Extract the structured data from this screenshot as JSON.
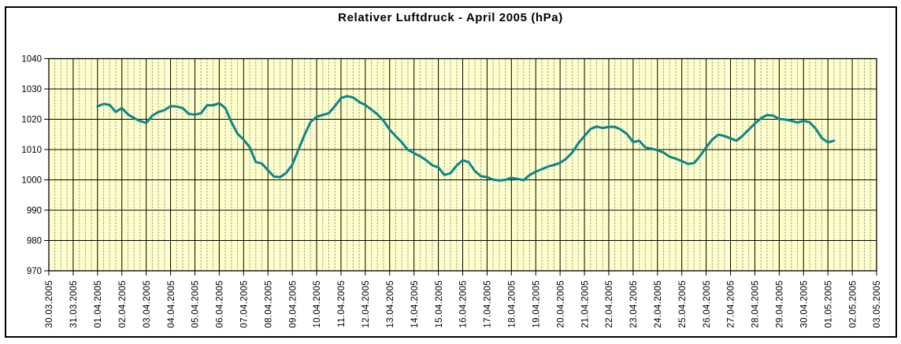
{
  "title": "Relativer Luftdruck - April 2005 (hPa)",
  "colors": {
    "page_bg": "#ffffff",
    "plot_bg": "#ffffcc",
    "major_grid": "#000000",
    "minor_grid": "#8a8a8a",
    "axis": "#000000",
    "tick_label": "#000000",
    "line": "#0b8787"
  },
  "chart_data": {
    "type": "line",
    "title": "Relativer Luftdruck - April 2005 (hPa)",
    "xlabel": "",
    "ylabel": "",
    "ylim": [
      970,
      1040
    ],
    "y_ticks": [
      1040,
      1030,
      1020,
      1010,
      1000,
      990,
      980,
      970
    ],
    "x_tick_labels": [
      "30.03.2005",
      "31.03.2005",
      "01.04.2005",
      "02.04.2005",
      "03.04.2005",
      "04.04.2005",
      "05.04.2005",
      "06.04.2005",
      "07.04.2005",
      "08.04.2005",
      "09.04.2005",
      "10.04.2005",
      "11.04.2005",
      "12.04.2005",
      "13.04.2005",
      "14.04.2005",
      "15.04.2005",
      "16.04.2005",
      "17.04.2005",
      "18.04.2005",
      "19.04.2005",
      "20.04.2005",
      "21.04.2005",
      "22.04.2005",
      "23.04.2005",
      "24.04.2005",
      "25.04.2005",
      "26.04.2005",
      "27.04.2005",
      "28.04.2005",
      "29.04.2005",
      "30.04.2005",
      "01.05.2005",
      "02.05.2005",
      "03.05.2005"
    ],
    "x_axis_days_range": [
      0,
      34
    ],
    "minor_gridlines_per_day": 4,
    "grid": true,
    "legend": "none",
    "series": [
      {
        "name": "Relativer Luftdruck (hPa)",
        "x_start_day": 2.0,
        "x_step_day": 0.25,
        "values": [
          1024.2,
          1025.1,
          1024.7,
          1022.4,
          1023.7,
          1021.6,
          1020.4,
          1019.4,
          1018.8,
          1021.2,
          1022.4,
          1023.0,
          1024.3,
          1024.2,
          1023.7,
          1021.8,
          1021.5,
          1022.0,
          1024.6,
          1024.6,
          1025.3,
          1023.7,
          1019.1,
          1015.2,
          1013.3,
          1010.8,
          1005.9,
          1005.4,
          1003.2,
          1001.1,
          1000.9,
          1002.3,
          1005.0,
          1009.9,
          1014.8,
          1019.1,
          1020.8,
          1021.4,
          1022.0,
          1024.3,
          1027.0,
          1027.6,
          1027.2,
          1025.7,
          1024.7,
          1023.2,
          1021.6,
          1019.5,
          1016.6,
          1014.4,
          1012.4,
          1009.9,
          1008.8,
          1007.8,
          1006.5,
          1004.8,
          1004.1,
          1001.6,
          1002.2,
          1004.7,
          1006.5,
          1005.8,
          1002.9,
          1001.2,
          1000.9,
          1000.1,
          999.8,
          1000.0,
          1000.7,
          1000.3,
          999.9,
          1001.6,
          1002.7,
          1003.5,
          1004.4,
          1004.9,
          1005.6,
          1007.0,
          1009.0,
          1012.1,
          1014.5,
          1016.8,
          1017.6,
          1017.1,
          1017.5,
          1017.5,
          1016.6,
          1015.1,
          1012.5,
          1012.9,
          1010.7,
          1010.3,
          1009.8,
          1009.0,
          1007.6,
          1007.0,
          1006.2,
          1005.3,
          1005.5,
          1007.9,
          1010.7,
          1013.3,
          1014.9,
          1014.5,
          1013.7,
          1012.9,
          1014.6,
          1016.6,
          1018.6,
          1020.3,
          1021.4,
          1021.2,
          1020.1,
          1019.9,
          1019.5,
          1018.9,
          1019.5,
          1019.0,
          1016.9,
          1013.8,
          1012.4,
          1012.9
        ]
      }
    ]
  }
}
